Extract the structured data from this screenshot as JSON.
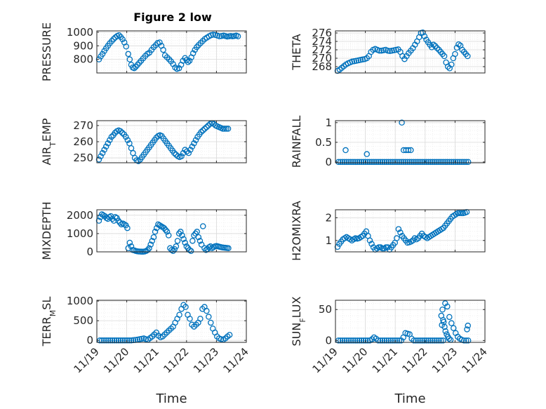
{
  "figure": {
    "title": "Figure 2 low"
  },
  "colors": {
    "marker": "#0072BD",
    "axis": "#262626",
    "grid": "#d9d9d9"
  },
  "chart_data": [
    {
      "id": "pressure",
      "type": "scatter",
      "title": "Figure 2 low",
      "ylabel": "PRESSURE",
      "ylim": [
        700,
        1010
      ],
      "yticks": [
        800,
        900,
        1000
      ],
      "ytick_labels": [
        "800",
        "900",
        "1000"
      ],
      "xlim": [
        0,
        5
      ],
      "xticks": [],
      "xtick_labels": [],
      "xlabel": "",
      "grid": true,
      "x": [
        0.07,
        0.13,
        0.19,
        0.25,
        0.31,
        0.37,
        0.43,
        0.5,
        0.56,
        0.62,
        0.68,
        0.74,
        0.8,
        0.86,
        0.92,
        0.98,
        1.05,
        1.1,
        1.15,
        1.2,
        1.25,
        1.3,
        1.36,
        1.42,
        1.48,
        1.55,
        1.62,
        1.69,
        1.76,
        1.83,
        1.9,
        1.97,
        2.03,
        2.1,
        2.16,
        2.22,
        2.28,
        2.35,
        2.42,
        2.48,
        2.55,
        2.62,
        2.68,
        2.75,
        2.82,
        2.88,
        2.95,
        3.0,
        3.05,
        3.1,
        3.16,
        3.22,
        3.28,
        3.34,
        3.4,
        3.47,
        3.54,
        3.61,
        3.68,
        3.75,
        3.82,
        3.89,
        3.96,
        4.03,
        4.1,
        4.17,
        4.24,
        4.3,
        4.36,
        4.42,
        4.48,
        4.54,
        4.6,
        4.66,
        4.72
      ],
      "y": [
        800,
        822,
        840,
        862,
        882,
        900,
        918,
        935,
        950,
        962,
        972,
        978,
        965,
        948,
        925,
        895,
        840,
        800,
        760,
        740,
        735,
        745,
        760,
        775,
        790,
        808,
        825,
        840,
        850,
        870,
        890,
        905,
        920,
        925,
        900,
        870,
        830,
        815,
        800,
        785,
        765,
        740,
        730,
        735,
        760,
        790,
        810,
        795,
        780,
        790,
        815,
        845,
        870,
        890,
        905,
        920,
        935,
        950,
        960,
        970,
        978,
        982,
        980,
        975,
        970,
        972,
        975,
        972,
        968,
        970,
        972,
        970,
        972,
        975,
        970
      ]
    },
    {
      "id": "theta",
      "type": "scatter",
      "ylabel": "THETA",
      "ylim": [
        266.5,
        276.5
      ],
      "yticks": [
        268,
        270,
        272,
        274,
        276
      ],
      "ytick_labels": [
        "268",
        "270",
        "272",
        "274",
        "276"
      ],
      "xlim": [
        0,
        5
      ],
      "xticks": [],
      "xtick_labels": [],
      "xlabel": "",
      "grid": true,
      "x": [
        0.07,
        0.14,
        0.21,
        0.28,
        0.35,
        0.42,
        0.49,
        0.56,
        0.63,
        0.7,
        0.77,
        0.84,
        0.91,
        0.98,
        1.05,
        1.12,
        1.19,
        1.26,
        1.33,
        1.4,
        1.47,
        1.54,
        1.61,
        1.68,
        1.75,
        1.82,
        1.89,
        1.96,
        2.03,
        2.1,
        2.17,
        2.24,
        2.31,
        2.38,
        2.45,
        2.52,
        2.59,
        2.66,
        2.73,
        2.8,
        2.86,
        2.92,
        2.98,
        3.04,
        3.1,
        3.16,
        3.22,
        3.28,
        3.34,
        3.4,
        3.46,
        3.52,
        3.58,
        3.64,
        3.7,
        3.76,
        3.82,
        3.88,
        3.94,
        4.0,
        4.06,
        4.12,
        4.18,
        4.24,
        4.3,
        4.36,
        4.42
      ],
      "y": [
        267.0,
        267.3,
        267.7,
        268.1,
        268.5,
        268.8,
        269.0,
        269.2,
        269.3,
        269.4,
        269.5,
        269.6,
        269.7,
        269.8,
        270.0,
        270.5,
        271.5,
        272.0,
        272.2,
        272.0,
        271.8,
        271.8,
        271.9,
        272.0,
        271.8,
        271.7,
        271.8,
        271.9,
        272.0,
        272.1,
        271.5,
        270.5,
        269.8,
        270.5,
        271.2,
        271.8,
        272.4,
        273.2,
        274.0,
        275.0,
        276.0,
        276.1,
        275.2,
        274.4,
        273.8,
        273.2,
        272.6,
        273.2,
        272.9,
        272.4,
        272.0,
        271.5,
        271.0,
        270.5,
        269.0,
        268.0,
        267.6,
        268.5,
        270.0,
        271.0,
        272.5,
        273.3,
        273.0,
        272.0,
        271.5,
        271.0,
        270.5
      ]
    },
    {
      "id": "airtemp",
      "type": "scatter",
      "ylabel": "AIR_TEMP",
      "ylim": [
        247,
        273
      ],
      "yticks": [
        250,
        260,
        270
      ],
      "ytick_labels": [
        "250",
        "260",
        "270"
      ],
      "xlim": [
        0,
        5
      ],
      "xticks": [],
      "xtick_labels": [],
      "xlabel": "",
      "grid": true,
      "x": [
        0.07,
        0.13,
        0.19,
        0.25,
        0.31,
        0.37,
        0.43,
        0.49,
        0.55,
        0.61,
        0.67,
        0.73,
        0.79,
        0.85,
        0.91,
        0.97,
        1.03,
        1.09,
        1.15,
        1.21,
        1.27,
        1.33,
        1.39,
        1.45,
        1.51,
        1.57,
        1.63,
        1.69,
        1.75,
        1.81,
        1.87,
        1.93,
        1.99,
        2.05,
        2.11,
        2.17,
        2.23,
        2.29,
        2.35,
        2.41,
        2.47,
        2.53,
        2.59,
        2.65,
        2.71,
        2.77,
        2.83,
        2.89,
        2.95,
        3.01,
        3.07,
        3.13,
        3.19,
        3.25,
        3.31,
        3.37,
        3.43,
        3.49,
        3.55,
        3.61,
        3.67,
        3.73,
        3.79,
        3.85,
        3.91,
        3.97,
        4.03,
        4.09,
        4.15,
        4.21,
        4.27,
        4.33,
        4.39
      ],
      "y": [
        249,
        251,
        253,
        255,
        257,
        259,
        261,
        263,
        264,
        265.5,
        266.5,
        267,
        266.5,
        265.5,
        264.5,
        263,
        261,
        259,
        256,
        253,
        250,
        248.5,
        248,
        249,
        250.5,
        252,
        253.5,
        255,
        256.5,
        258,
        259.5,
        261,
        262.5,
        263.5,
        264,
        263.5,
        262,
        260.5,
        259,
        257.5,
        256,
        254.5,
        253,
        252,
        251,
        250.5,
        251,
        253,
        255,
        254,
        253,
        255,
        257,
        259,
        261,
        263,
        264.5,
        266,
        267,
        268,
        269,
        270,
        271,
        271.5,
        271,
        270,
        269.5,
        269,
        268.5,
        268,
        268,
        268,
        268
      ]
    },
    {
      "id": "rainfall",
      "type": "scatter",
      "ylabel": "RAINFALL",
      "ylim": [
        -0.02,
        1.05
      ],
      "yticks": [
        0,
        0.5,
        1
      ],
      "ytick_labels": [
        "0",
        "0.5",
        "1"
      ],
      "xlim": [
        0,
        5
      ],
      "xticks": [],
      "xtick_labels": [],
      "xlabel": "",
      "grid": true,
      "x": [
        0.1,
        0.17,
        0.24,
        0.31,
        0.38,
        0.45,
        0.52,
        0.59,
        0.66,
        0.73,
        0.8,
        0.87,
        0.94,
        1.01,
        1.08,
        1.15,
        1.22,
        1.29,
        1.36,
        1.43,
        1.5,
        1.57,
        1.64,
        1.71,
        1.78,
        1.85,
        1.92,
        1.99,
        2.06,
        2.13,
        2.2,
        2.27,
        2.34,
        2.41,
        2.48,
        2.55,
        2.62,
        2.69,
        2.76,
        2.83,
        2.9,
        2.97,
        3.04,
        3.11,
        3.18,
        3.25,
        3.32,
        3.39,
        3.46,
        3.53,
        3.6,
        3.67,
        3.74,
        3.81,
        3.88,
        3.95,
        4.02,
        4.09,
        4.16,
        4.23,
        4.3,
        4.37,
        4.44,
        0.34,
        1.05,
        2.22,
        2.28,
        2.36,
        2.44,
        2.52
      ],
      "y": [
        0,
        0,
        0,
        0,
        0,
        0,
        0,
        0,
        0,
        0,
        0,
        0,
        0,
        0,
        0,
        0,
        0,
        0,
        0,
        0,
        0,
        0,
        0,
        0,
        0,
        0,
        0,
        0,
        0,
        0,
        0,
        0,
        0,
        0,
        0,
        0,
        0,
        0,
        0,
        0,
        0,
        0,
        0,
        0,
        0,
        0,
        0,
        0,
        0,
        0,
        0,
        0,
        0,
        0,
        0,
        0,
        0,
        0,
        0,
        0,
        0,
        0,
        0,
        0.3,
        0.2,
        1.0,
        0.3,
        0.3,
        0.3,
        0.3
      ]
    },
    {
      "id": "mixdepth",
      "type": "scatter",
      "ylabel": "MIXDEPTH",
      "ylim": [
        0,
        2300
      ],
      "yticks": [
        0,
        1000,
        2000
      ],
      "ytick_labels": [
        "0",
        "1000",
        "2000"
      ],
      "xlim": [
        0,
        5
      ],
      "xticks": [],
      "xtick_labels": [],
      "xlabel": "",
      "grid": true,
      "x": [
        0.07,
        0.12,
        0.17,
        0.22,
        0.27,
        0.32,
        0.37,
        0.42,
        0.47,
        0.52,
        0.57,
        0.62,
        0.67,
        0.72,
        0.77,
        0.82,
        0.87,
        0.92,
        0.97,
        1.02,
        1.05,
        1.1,
        1.15,
        1.2,
        1.25,
        1.3,
        1.35,
        1.4,
        1.45,
        1.5,
        1.55,
        1.6,
        1.65,
        1.7,
        1.75,
        1.8,
        1.85,
        1.9,
        1.95,
        2.0,
        2.05,
        2.1,
        2.15,
        2.2,
        2.25,
        2.3,
        2.35,
        2.4,
        2.45,
        2.5,
        2.55,
        2.6,
        2.65,
        2.7,
        2.75,
        2.8,
        2.85,
        2.9,
        2.95,
        3.0,
        3.05,
        3.1,
        3.15,
        3.2,
        3.25,
        3.3,
        3.35,
        3.4,
        3.45,
        3.5,
        3.55,
        3.6,
        3.65,
        3.7,
        3.75,
        3.8,
        3.85,
        3.9,
        3.95,
        4.0,
        4.05,
        4.1,
        4.15,
        4.2,
        4.25,
        4.3,
        4.35,
        4.4
      ],
      "y": [
        1700,
        1900,
        2050,
        2000,
        1950,
        1850,
        1800,
        1900,
        1950,
        1800,
        1700,
        1900,
        1850,
        1700,
        1600,
        1500,
        1550,
        1500,
        1450,
        1300,
        200,
        500,
        300,
        100,
        80,
        50,
        30,
        20,
        15,
        10,
        10,
        20,
        50,
        100,
        200,
        400,
        600,
        800,
        1100,
        1300,
        1500,
        1450,
        1400,
        1350,
        1300,
        1200,
        1100,
        900,
        200,
        100,
        50,
        150,
        300,
        600,
        1000,
        1100,
        900,
        700,
        500,
        300,
        200,
        100,
        50,
        600,
        900,
        1000,
        1100,
        800,
        600,
        400,
        1400,
        200,
        100,
        150,
        250,
        300,
        200,
        250,
        300,
        320,
        300,
        280,
        260,
        240,
        230,
        220,
        210,
        200
      ]
    },
    {
      "id": "h2omixra",
      "type": "scatter",
      "ylabel": "H2OMIXRA",
      "ylim": [
        0.5,
        2.35
      ],
      "yticks": [
        1,
        2
      ],
      "ytick_labels": [
        "1",
        "2"
      ],
      "xlim": [
        0,
        5
      ],
      "xticks": [],
      "xtick_labels": [],
      "xlabel": "",
      "grid": true,
      "x": [
        0.07,
        0.13,
        0.19,
        0.25,
        0.31,
        0.37,
        0.43,
        0.49,
        0.55,
        0.61,
        0.67,
        0.73,
        0.79,
        0.85,
        0.91,
        0.97,
        1.03,
        1.09,
        1.15,
        1.21,
        1.27,
        1.33,
        1.39,
        1.45,
        1.51,
        1.57,
        1.63,
        1.69,
        1.75,
        1.81,
        1.87,
        1.93,
        1.99,
        2.05,
        2.11,
        2.17,
        2.23,
        2.29,
        2.35,
        2.41,
        2.47,
        2.53,
        2.59,
        2.65,
        2.71,
        2.77,
        2.83,
        2.89,
        2.95,
        3.01,
        3.07,
        3.13,
        3.19,
        3.25,
        3.31,
        3.37,
        3.43,
        3.49,
        3.55,
        3.61,
        3.67,
        3.73,
        3.79,
        3.85,
        3.91,
        3.97,
        4.03,
        4.09,
        4.15,
        4.21,
        4.27,
        4.33,
        4.39
      ],
      "y": [
        0.72,
        0.85,
        0.95,
        1.05,
        1.1,
        1.15,
        1.1,
        1.05,
        1.0,
        1.05,
        1.1,
        1.08,
        1.1,
        1.15,
        1.2,
        1.3,
        1.4,
        1.2,
        1.0,
        0.85,
        0.7,
        0.6,
        0.65,
        0.7,
        0.7,
        0.65,
        0.65,
        0.7,
        0.7,
        0.6,
        0.7,
        0.8,
        0.9,
        1.1,
        1.5,
        1.35,
        1.2,
        1.1,
        1.0,
        0.9,
        0.92,
        0.95,
        1.0,
        1.1,
        1.05,
        1.1,
        1.2,
        1.3,
        1.2,
        1.15,
        1.1,
        1.15,
        1.2,
        1.25,
        1.3,
        1.35,
        1.4,
        1.45,
        1.5,
        1.55,
        1.65,
        1.75,
        1.85,
        1.95,
        2.05,
        2.1,
        2.15,
        2.2,
        2.2,
        2.2,
        2.2,
        2.22,
        2.25
      ]
    },
    {
      "id": "terrmsl",
      "type": "scatter",
      "ylabel": "TERR_MSL",
      "ylim": [
        -50,
        1020
      ],
      "yticks": [
        0,
        500,
        1000
      ],
      "ytick_labels": [
        "0",
        "500",
        "1000"
      ],
      "xlim": [
        0,
        5
      ],
      "xticks": [
        0,
        1,
        2,
        3,
        4,
        5
      ],
      "xtick_labels": [
        "11/19",
        "11/20",
        "11/21",
        "11/22",
        "11/23",
        "11/24"
      ],
      "xlabel": "Time",
      "grid": true,
      "x": [
        0.1,
        0.17,
        0.24,
        0.31,
        0.38,
        0.45,
        0.52,
        0.59,
        0.66,
        0.73,
        0.8,
        0.87,
        0.94,
        1.01,
        1.08,
        1.15,
        1.22,
        1.29,
        1.36,
        1.43,
        1.5,
        1.57,
        1.64,
        1.71,
        1.78,
        1.85,
        1.92,
        1.99,
        2.06,
        2.13,
        2.2,
        2.27,
        2.34,
        2.41,
        2.48,
        2.55,
        2.62,
        2.69,
        2.76,
        2.83,
        2.9,
        2.97,
        3.04,
        3.11,
        3.18,
        3.25,
        3.32,
        3.39,
        3.46,
        3.53,
        3.6,
        3.67,
        3.74,
        3.81,
        3.88,
        3.95,
        4.02,
        4.09,
        4.16,
        4.23,
        4.3,
        4.37,
        4.44
      ],
      "y": [
        0,
        0,
        0,
        0,
        0,
        0,
        0,
        0,
        0,
        0,
        0,
        0,
        0,
        0,
        0,
        0,
        5,
        10,
        20,
        30,
        40,
        50,
        30,
        20,
        60,
        100,
        150,
        200,
        120,
        80,
        100,
        150,
        200,
        250,
        300,
        350,
        450,
        550,
        650,
        800,
        900,
        850,
        650,
        550,
        400,
        350,
        400,
        450,
        550,
        800,
        850,
        750,
        600,
        450,
        300,
        200,
        100,
        50,
        30,
        20,
        50,
        100,
        140
      ]
    },
    {
      "id": "sunflux",
      "type": "scatter",
      "ylabel": "SUN_FLUX",
      "ylim": [
        -3,
        65
      ],
      "yticks": [
        0,
        50
      ],
      "ytick_labels": [
        "0",
        "50"
      ],
      "xlim": [
        0,
        5
      ],
      "xticks": [
        0,
        1,
        2,
        3,
        4,
        5
      ],
      "xtick_labels": [
        "11/19",
        "11/20",
        "11/21",
        "11/22",
        "11/23",
        "11/24"
      ],
      "xlabel": "Time",
      "grid": true,
      "x": [
        0.1,
        0.17,
        0.24,
        0.31,
        0.38,
        0.45,
        0.52,
        0.59,
        0.66,
        0.73,
        0.8,
        0.87,
        0.94,
        1.01,
        1.08,
        1.15,
        1.22,
        1.29,
        1.36,
        1.43,
        1.5,
        1.57,
        1.64,
        1.71,
        1.78,
        1.85,
        1.92,
        1.99,
        2.06,
        2.13,
        2.2,
        2.27,
        2.34,
        2.41,
        2.48,
        2.55,
        2.62,
        2.69,
        2.76,
        2.83,
        2.9,
        2.97,
        3.04,
        3.11,
        3.18,
        3.25,
        3.32,
        3.39,
        3.46,
        3.53,
        3.6,
        3.67,
        3.74,
        3.81,
        3.88,
        3.95,
        4.02,
        4.09,
        4.16,
        4.23,
        4.3,
        4.37,
        4.44,
        3.54,
        3.56,
        3.58,
        3.6,
        3.62,
        3.65,
        3.68,
        3.72,
        3.76,
        3.8,
        3.85,
        4.4,
        4.43
      ],
      "y": [
        0,
        0,
        0,
        0,
        0,
        0,
        0,
        0,
        0,
        0,
        0,
        0,
        0,
        0,
        0,
        0,
        2,
        5,
        3,
        0,
        0,
        0,
        0,
        0,
        0,
        0,
        0,
        0,
        0,
        0,
        0,
        5,
        12,
        11,
        10,
        3,
        0,
        0,
        0,
        0,
        0,
        0,
        0,
        0,
        0,
        0,
        0,
        0,
        0,
        0,
        0,
        60,
        55,
        38,
        28,
        20,
        12,
        6,
        3,
        1,
        0,
        0,
        0,
        40,
        25,
        50,
        33,
        30,
        22,
        15,
        10,
        6,
        3,
        1,
        18,
        24
      ]
    }
  ]
}
